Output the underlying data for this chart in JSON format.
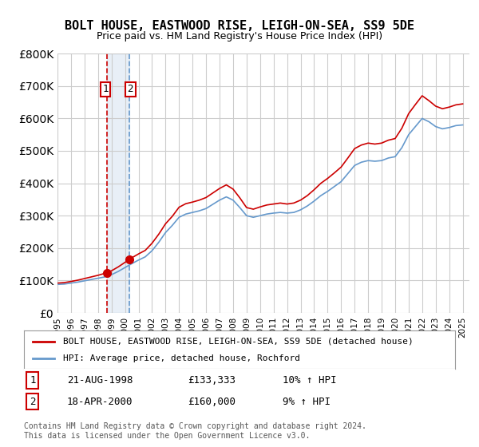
{
  "title": "BOLT HOUSE, EASTWOOD RISE, LEIGH-ON-SEA, SS9 5DE",
  "subtitle": "Price paid vs. HM Land Registry's House Price Index (HPI)",
  "legend_line1": "BOLT HOUSE, EASTWOOD RISE, LEIGH-ON-SEA, SS9 5DE (detached house)",
  "legend_line2": "HPI: Average price, detached house, Rochford",
  "sale1_date": "21-AUG-1998",
  "sale1_price": 133333,
  "sale1_label": "1",
  "sale1_year": 1998.64,
  "sale2_date": "18-APR-2000",
  "sale2_price": 160000,
  "sale2_label": "2",
  "sale2_year": 2000.3,
  "footnote": "Contains HM Land Registry data © Crown copyright and database right 2024.\nThis data is licensed under the Open Government Licence v3.0.",
  "table_row1": [
    "1",
    "21-AUG-1998",
    "£133,333",
    "10% ↑ HPI"
  ],
  "table_row2": [
    "2",
    "18-APR-2000",
    "£160,000",
    "9% ↑ HPI"
  ],
  "red_color": "#cc0000",
  "blue_color": "#6699cc",
  "background_color": "#ffffff",
  "grid_color": "#cccccc",
  "ylim": [
    0,
    800000
  ],
  "xlim": [
    1995.0,
    2025.5
  ]
}
